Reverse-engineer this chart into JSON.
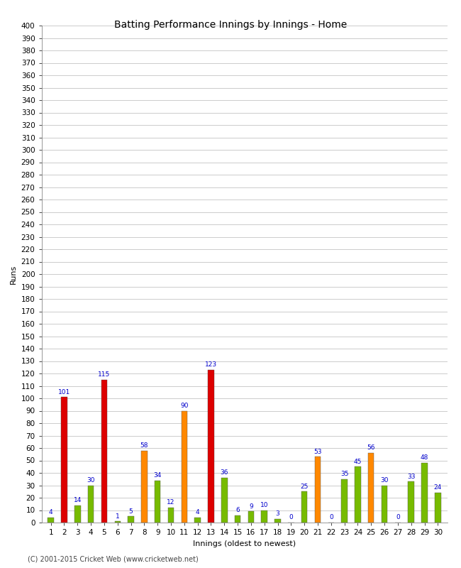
{
  "title": "Batting Performance Innings by Innings - Home",
  "xlabel": "Innings (oldest to newest)",
  "ylabel": "Runs",
  "innings": [
    1,
    2,
    3,
    4,
    5,
    6,
    7,
    8,
    9,
    10,
    11,
    12,
    13,
    14,
    15,
    16,
    17,
    18,
    19,
    20,
    21,
    22,
    23,
    24,
    25,
    26,
    27,
    28,
    29,
    30
  ],
  "values": [
    4,
    101,
    14,
    30,
    115,
    1,
    5,
    58,
    34,
    12,
    90,
    4,
    123,
    36,
    6,
    9,
    10,
    3,
    0,
    25,
    53,
    0,
    35,
    45,
    56,
    30,
    0,
    33,
    48,
    24
  ],
  "colors": [
    "#77bb00",
    "#dd0000",
    "#77bb00",
    "#77bb00",
    "#dd0000",
    "#77bb00",
    "#77bb00",
    "#ff8800",
    "#77bb00",
    "#77bb00",
    "#ff8800",
    "#77bb00",
    "#dd0000",
    "#77bb00",
    "#77bb00",
    "#77bb00",
    "#77bb00",
    "#77bb00",
    "#77bb00",
    "#77bb00",
    "#ff8800",
    "#77bb00",
    "#77bb00",
    "#77bb00",
    "#ff8800",
    "#77bb00",
    "#77bb00",
    "#77bb00",
    "#77bb00",
    "#77bb00"
  ],
  "ylim": [
    0,
    400
  ],
  "yticks": [
    0,
    10,
    20,
    30,
    40,
    50,
    60,
    70,
    80,
    90,
    100,
    110,
    120,
    130,
    140,
    150,
    160,
    170,
    180,
    190,
    200,
    210,
    220,
    230,
    240,
    250,
    260,
    270,
    280,
    290,
    300,
    310,
    320,
    330,
    340,
    350,
    360,
    370,
    380,
    390,
    400
  ],
  "grid_color": "#cccccc",
  "bg_color": "#ffffff",
  "bar_edge_color": "#555555",
  "label_color": "#0000cc",
  "label_fontsize": 6.5,
  "axis_tick_fontsize": 7.5,
  "xlabel_fontsize": 8,
  "ylabel_fontsize": 8,
  "title_fontsize": 10,
  "footer": "(C) 2001-2015 Cricket Web (www.cricketweb.net)",
  "bar_width": 0.45
}
